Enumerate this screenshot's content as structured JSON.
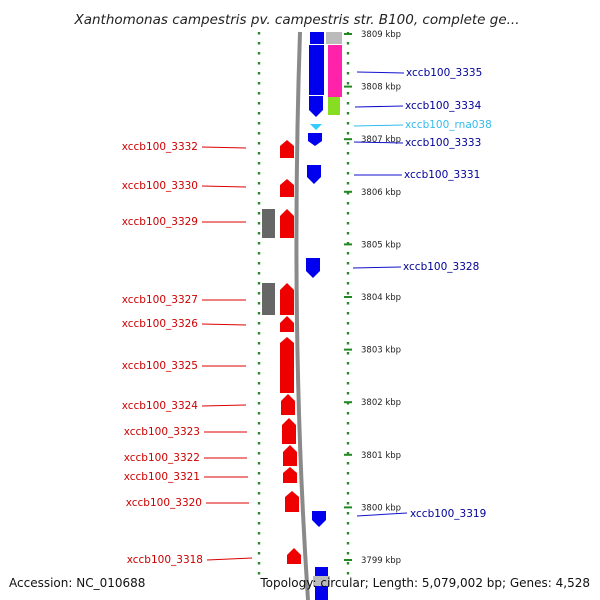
{
  "header": {
    "title": "Xanthomonas campestris pv. campestris str. B100, complete ge..."
  },
  "footer": {
    "accession": "Accession: NC_010688",
    "topology": "Topology: circular; Length: 5,079,002 bp; Genes: 4,528"
  },
  "colors": {
    "forward_gene": "#ff0000",
    "reverse_gene": "#0000ff",
    "rna": "#33ccff",
    "pseudo": "#666666",
    "forward_label": "#cc0000",
    "reverse_label": "#000099",
    "rna_label": "#33bbee",
    "ruler": "#228822",
    "backbone": "#888888",
    "magenta_feature": "#ff22aa",
    "green_feature": "#88dd22"
  },
  "ruler": {
    "ticks": [
      "3809 kbp",
      "3808 kbp",
      "3807 kbp",
      "3806 kbp",
      "3805 kbp",
      "3804 kbp",
      "3803 kbp",
      "3802 kbp",
      "3801 kbp",
      "3800 kbp",
      "3799 kbp"
    ]
  },
  "left_genes": [
    "xccb100_3332",
    "xccb100_3330",
    "xccb100_3329",
    "xccb100_3327",
    "xccb100_3326",
    "xccb100_3325",
    "xccb100_3324",
    "xccb100_3323",
    "xccb100_3322",
    "xccb100_3321",
    "xccb100_3320",
    "xccb100_3318"
  ],
  "right_genes": [
    "xccb100_3335",
    "xccb100_3334",
    "xccb100_rna038",
    "xccb100_3333",
    "xccb100_3331",
    "xccb100_3328",
    "xccb100_3319"
  ]
}
